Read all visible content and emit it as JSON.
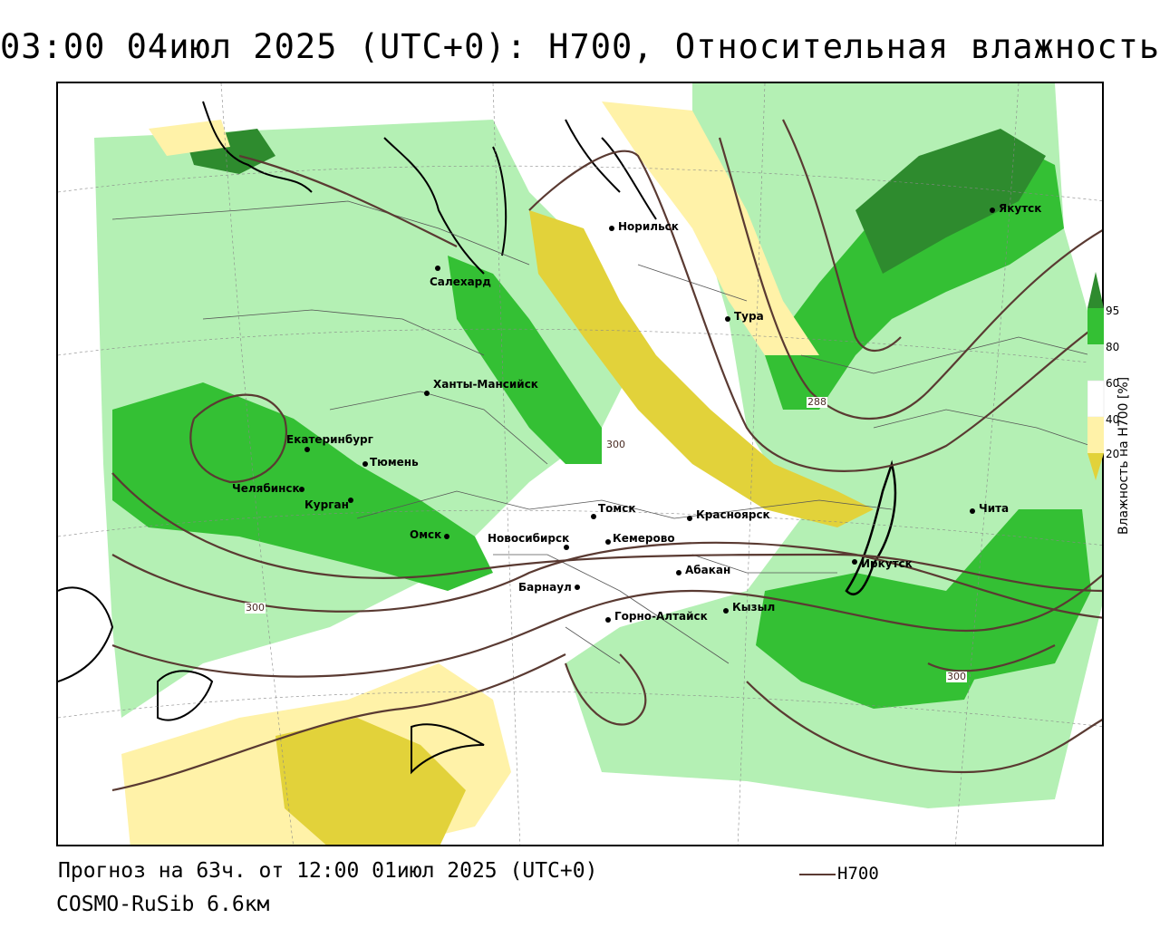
{
  "title": "03:00 04июл 2025 (UTC+0): H700, Относительная влажность",
  "forecast": "Прогноз на 63ч. от 12:00 01июл 2025 (UTC+0)",
  "model": "COSMO-RuSib 6.6км",
  "line_legend": "H700",
  "legend": {
    "title": "Влажность на H700 [%]",
    "ticks": [
      "95",
      "80",
      "60",
      "40",
      "20"
    ],
    "colors": {
      "dark_green": "#2e8b2e",
      "green": "#34c034",
      "light_green": "#b4f0b4",
      "white": "#ffffff",
      "light_yellow": "#fff2a8",
      "yellow": "#e2d23a"
    }
  },
  "contour_color": "#5a3a32",
  "contour_labels": [
    "300",
    "288",
    "300",
    "300"
  ],
  "cities": [
    {
      "name": "Норильск"
    },
    {
      "name": "Якутск"
    },
    {
      "name": "Салехард"
    },
    {
      "name": "Тура"
    },
    {
      "name": "Ханты-Мансийск"
    },
    {
      "name": "Екатеринбург"
    },
    {
      "name": "Тюмень"
    },
    {
      "name": "Челябинск"
    },
    {
      "name": "Курган"
    },
    {
      "name": "Омск"
    },
    {
      "name": "Новосибирск"
    },
    {
      "name": "Томск"
    },
    {
      "name": "Кемерово"
    },
    {
      "name": "Красноярск"
    },
    {
      "name": "Барнаул"
    },
    {
      "name": "Абакан"
    },
    {
      "name": "Горно-Алтайск"
    },
    {
      "name": "Кызыл"
    },
    {
      "name": "Иркутск"
    },
    {
      "name": "Чита"
    }
  ]
}
